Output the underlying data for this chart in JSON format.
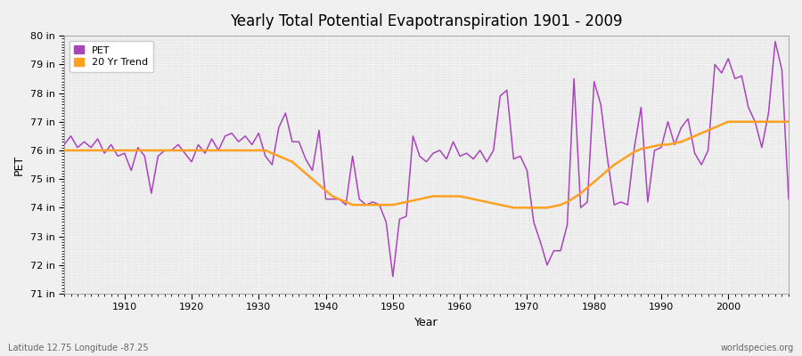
{
  "title": "Yearly Total Potential Evapotranspiration 1901 - 2009",
  "xlabel": "Year",
  "ylabel": "PET",
  "footnote_left": "Latitude 12.75 Longitude -87.25",
  "footnote_right": "worldspecies.org",
  "pet_color": "#AA44BB",
  "trend_color": "#FFA020",
  "bg_color": "#F0F0F0",
  "plot_bg_color": "#EBEBEB",
  "grid_color": "#FFFFFF",
  "ylim": [
    71,
    80
  ],
  "xlim": [
    1901,
    2009
  ],
  "yticks": [
    71,
    72,
    73,
    74,
    75,
    76,
    77,
    78,
    79,
    80
  ],
  "ytick_labels": [
    "71 in",
    "72 in",
    "73 in",
    "74 in",
    "75 in",
    "76 in",
    "77 in",
    "78 in",
    "79 in",
    "80 in"
  ],
  "xticks": [
    1910,
    1920,
    1930,
    1940,
    1950,
    1960,
    1970,
    1980,
    1990,
    2000
  ],
  "years": [
    1901,
    1902,
    1903,
    1904,
    1905,
    1906,
    1907,
    1908,
    1909,
    1910,
    1911,
    1912,
    1913,
    1914,
    1915,
    1916,
    1917,
    1918,
    1919,
    1920,
    1921,
    1922,
    1923,
    1924,
    1925,
    1926,
    1927,
    1928,
    1929,
    1930,
    1931,
    1932,
    1933,
    1934,
    1935,
    1936,
    1937,
    1938,
    1939,
    1940,
    1941,
    1942,
    1943,
    1944,
    1945,
    1946,
    1947,
    1948,
    1949,
    1950,
    1951,
    1952,
    1953,
    1954,
    1955,
    1956,
    1957,
    1958,
    1959,
    1960,
    1961,
    1962,
    1963,
    1964,
    1965,
    1966,
    1967,
    1968,
    1969,
    1970,
    1971,
    1972,
    1973,
    1974,
    1975,
    1976,
    1977,
    1978,
    1979,
    1980,
    1981,
    1982,
    1983,
    1984,
    1985,
    1986,
    1987,
    1988,
    1989,
    1990,
    1991,
    1992,
    1993,
    1994,
    1995,
    1996,
    1997,
    1998,
    1999,
    2000,
    2001,
    2002,
    2003,
    2004,
    2005,
    2006,
    2007,
    2008,
    2009
  ],
  "pet_values": [
    76.2,
    76.5,
    76.1,
    76.3,
    76.1,
    76.4,
    75.9,
    76.2,
    75.8,
    75.9,
    75.3,
    76.1,
    75.8,
    74.5,
    75.8,
    76.0,
    76.0,
    76.2,
    75.9,
    75.6,
    76.2,
    75.9,
    76.4,
    76.0,
    76.5,
    76.6,
    76.3,
    76.5,
    76.2,
    76.6,
    75.8,
    75.5,
    76.8,
    77.3,
    76.3,
    76.3,
    75.7,
    75.3,
    76.7,
    74.3,
    74.3,
    74.3,
    74.1,
    75.8,
    74.3,
    74.1,
    74.2,
    74.1,
    73.5,
    71.6,
    73.6,
    73.7,
    76.5,
    75.8,
    75.6,
    75.9,
    76.0,
    75.7,
    76.3,
    75.8,
    75.9,
    75.7,
    76.0,
    75.6,
    76.0,
    77.9,
    78.1,
    75.7,
    75.8,
    75.3,
    73.5,
    72.8,
    72.0,
    72.5,
    72.5,
    73.4,
    78.5,
    74.0,
    74.2,
    78.4,
    77.6,
    75.7,
    74.1,
    74.2,
    74.1,
    76.1,
    77.5,
    74.2,
    76.0,
    76.1,
    77.0,
    76.2,
    76.8,
    77.1,
    75.9,
    75.5,
    76.0,
    79.0,
    78.7,
    79.2,
    78.5,
    78.6,
    77.5,
    77.0,
    76.1,
    77.3,
    79.8,
    78.8,
    74.3
  ],
  "trend_values": [
    76.0,
    76.0,
    76.0,
    76.0,
    76.0,
    76.0,
    76.0,
    76.0,
    76.0,
    76.0,
    76.0,
    76.0,
    76.0,
    76.0,
    76.0,
    76.0,
    76.0,
    76.0,
    76.0,
    76.0,
    76.0,
    76.0,
    76.0,
    76.0,
    76.0,
    76.0,
    76.0,
    76.0,
    76.0,
    76.0,
    76.0,
    75.9,
    75.8,
    75.7,
    75.6,
    75.4,
    75.2,
    75.0,
    74.8,
    74.6,
    74.4,
    74.3,
    74.2,
    74.1,
    74.1,
    74.1,
    74.1,
    74.1,
    74.1,
    74.1,
    74.15,
    74.2,
    74.25,
    74.3,
    74.35,
    74.4,
    74.4,
    74.4,
    74.4,
    74.4,
    74.35,
    74.3,
    74.25,
    74.2,
    74.15,
    74.1,
    74.05,
    74.0,
    74.0,
    74.0,
    74.0,
    74.0,
    74.0,
    74.05,
    74.1,
    74.2,
    74.35,
    74.5,
    74.7,
    74.9,
    75.1,
    75.3,
    75.5,
    75.65,
    75.8,
    75.95,
    76.05,
    76.1,
    76.15,
    76.2,
    76.2,
    76.25,
    76.3,
    76.4,
    76.5,
    76.6,
    76.7,
    76.8,
    76.9,
    77.0,
    77.0,
    77.0,
    77.0,
    77.0,
    77.0,
    77.0,
    77.0,
    77.0,
    77.0
  ]
}
